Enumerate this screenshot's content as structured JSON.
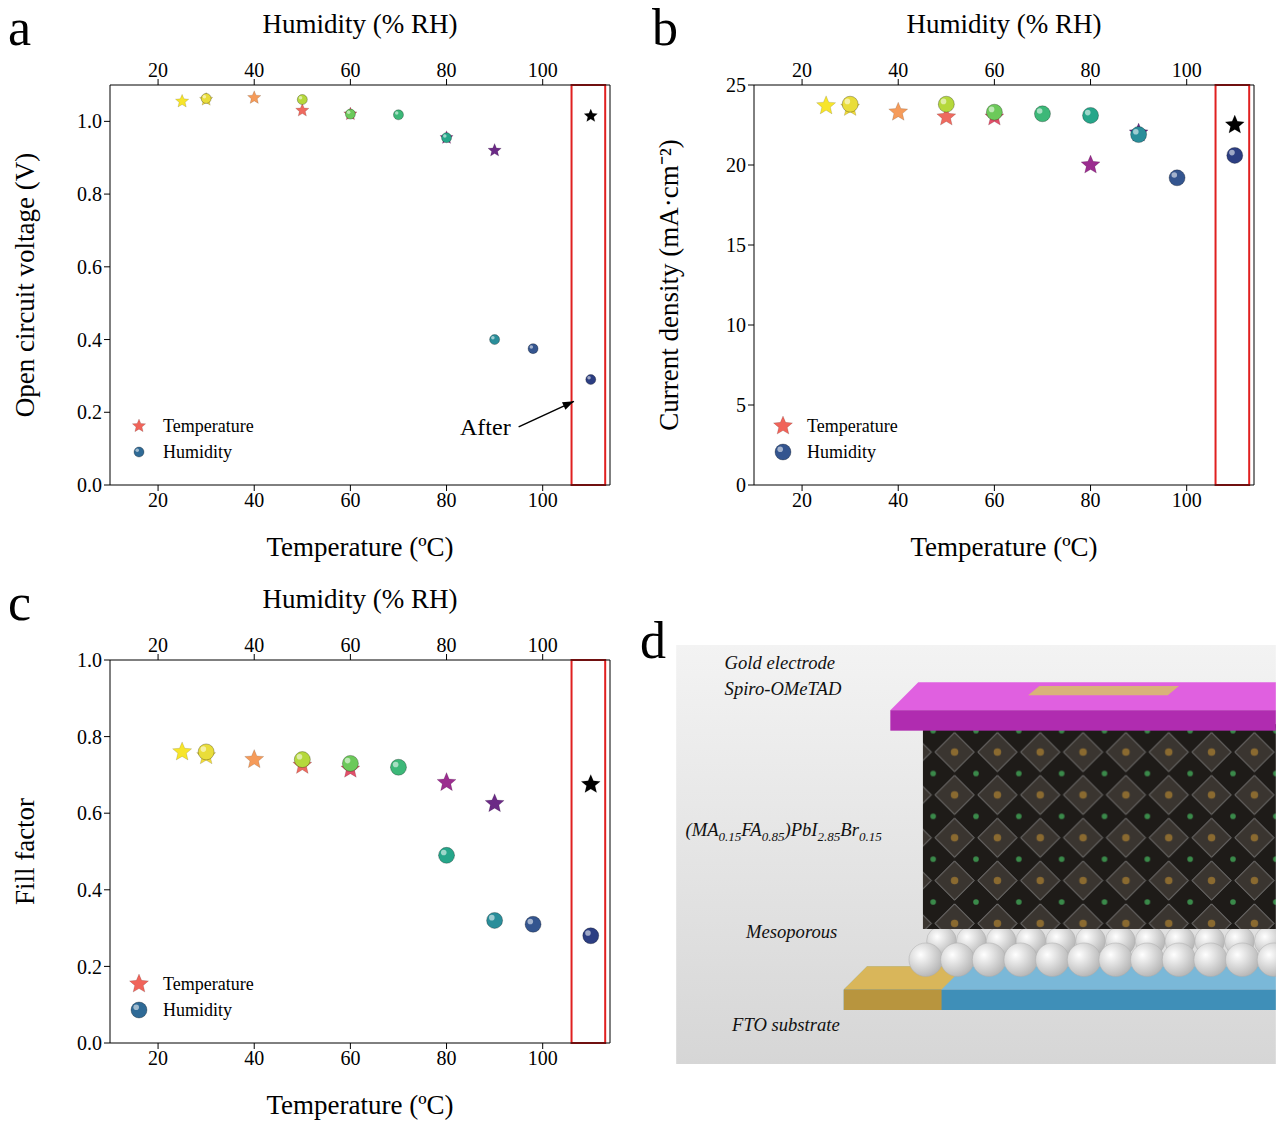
{
  "chart_data": [
    {
      "label": "a",
      "type": "scatter",
      "x_label": "Temperature (ºC)",
      "x2_label": "Humidity (% RH)",
      "y_label": "Open circuit voltage (V)",
      "xlim": [
        10,
        114
      ],
      "xticks": [
        20,
        40,
        60,
        80,
        100
      ],
      "x2lim": [
        10,
        114
      ],
      "x2ticks": [
        20,
        40,
        60,
        80,
        100
      ],
      "ylim": [
        0,
        1.1
      ],
      "yticks": [
        {
          "value": 0,
          "label": "0.0"
        },
        0.2,
        0.4,
        0.6,
        0.8,
        {
          "value": 1,
          "label": "1.0"
        }
      ],
      "legend": "lower left",
      "highlight_x": [
        106,
        113
      ],
      "annotations": [
        {
          "text": "After",
          "arrow": [
            [
              95,
              0.16
            ],
            [
              106.5,
              0.23
            ]
          ]
        }
      ],
      "series": [
        {
          "name": "Temperature",
          "marker": "star",
          "color": "#f0645a",
          "x": [
            25,
            30,
            40,
            50,
            60,
            80,
            90,
            110
          ],
          "values": [
            1.055,
            1.06,
            1.065,
            1.03,
            1.02,
            0.955,
            0.92,
            1.015
          ],
          "colors": [
            "#f7e52b",
            "#f2dc3c",
            "#f59b5a",
            "#ee6a5f",
            "#e2506a",
            "#9b2d8f",
            "#6b2a86",
            "#000000"
          ]
        },
        {
          "name": "Humidity",
          "axis": "x2",
          "marker": "circle",
          "color": "#2f6a96",
          "x": [
            30,
            50,
            60,
            70,
            80,
            90,
            98,
            110
          ],
          "values": [
            1.063,
            1.06,
            1.02,
            1.018,
            0.955,
            0.4,
            0.375,
            0.29
          ],
          "colors": [
            "#e9dd3a",
            "#b5d83c",
            "#6cc95a",
            "#3cb878",
            "#26a68a",
            "#2a8e9a",
            "#34558f",
            "#2c3e82"
          ]
        }
      ]
    },
    {
      "label": "b",
      "type": "scatter",
      "x_label": "Temperature (ºC)",
      "x2_label": "Humidity (% RH)",
      "y_label": "Current density (mA·cm⁻²)",
      "xlim": [
        10,
        114
      ],
      "xticks": [
        20,
        40,
        60,
        80,
        100
      ],
      "x2lim": [
        10,
        114
      ],
      "x2ticks": [
        20,
        40,
        60,
        80,
        100
      ],
      "ylim": [
        0,
        25
      ],
      "yticks": [
        0,
        5,
        10,
        15,
        20,
        25
      ],
      "legend": "lower left",
      "highlight_x": [
        106,
        113
      ],
      "series": [
        {
          "name": "Temperature",
          "marker": "star",
          "color": "#f0645a",
          "x": [
            25,
            30,
            40,
            50,
            60,
            80,
            90,
            110
          ],
          "values": [
            23.7,
            23.6,
            23.3,
            23.0,
            23.0,
            20.0,
            22.0,
            22.5
          ],
          "colors": [
            "#f7e52b",
            "#f2dc3c",
            "#f59b5a",
            "#ee6a5f",
            "#e2506a",
            "#9b2d8f",
            "#6b2a86",
            "#000000"
          ]
        },
        {
          "name": "Humidity",
          "axis": "x2",
          "marker": "circle",
          "color": "#34558f",
          "x": [
            30,
            50,
            60,
            70,
            80,
            90,
            98,
            110
          ],
          "values": [
            23.8,
            23.8,
            23.3,
            23.2,
            23.1,
            21.9,
            19.2,
            20.6
          ],
          "colors": [
            "#e9dd3a",
            "#b5d83c",
            "#6cc95a",
            "#3cb878",
            "#26a68a",
            "#2a8e9a",
            "#34558f",
            "#2c3e82"
          ]
        }
      ]
    },
    {
      "label": "c",
      "type": "scatter",
      "x_label": "Temperature (ºC)",
      "x2_label": "Humidity (% RH)",
      "y_label": "Fill factor",
      "xlim": [
        10,
        114
      ],
      "xticks": [
        20,
        40,
        60,
        80,
        100
      ],
      "x2lim": [
        10,
        114
      ],
      "x2ticks": [
        20,
        40,
        60,
        80,
        100
      ],
      "ylim": [
        0,
        1
      ],
      "yticks": [
        {
          "value": 0,
          "label": "0.0"
        },
        0.2,
        0.4,
        0.6,
        0.8,
        {
          "value": 1,
          "label": "1.0"
        }
      ],
      "legend": "lower left",
      "highlight_x": [
        106,
        113
      ],
      "series": [
        {
          "name": "Temperature",
          "marker": "star",
          "color": "#f0645a",
          "x": [
            25,
            30,
            40,
            50,
            60,
            80,
            90,
            110
          ],
          "values": [
            0.76,
            0.75,
            0.74,
            0.725,
            0.715,
            0.68,
            0.625,
            0.675
          ],
          "colors": [
            "#f7e52b",
            "#f2dc3c",
            "#f59b5a",
            "#ee6a5f",
            "#e2506a",
            "#9b2d8f",
            "#6b2a86",
            "#000000"
          ]
        },
        {
          "name": "Humidity",
          "axis": "x2",
          "marker": "circle",
          "color": "#2f6a96",
          "x": [
            30,
            50,
            60,
            70,
            80,
            90,
            98,
            110
          ],
          "values": [
            0.76,
            0.74,
            0.73,
            0.72,
            0.49,
            0.32,
            0.31,
            0.28
          ],
          "colors": [
            "#e9dd3a",
            "#b5d83c",
            "#6cc95a",
            "#3cb878",
            "#26a68a",
            "#2a8e9a",
            "#34558f",
            "#2c3e82"
          ]
        }
      ]
    }
  ],
  "diagram": {
    "label": "d",
    "labels": {
      "electrode": "Gold electrode",
      "htl": "Spiro-OMeTAD",
      "absorber": [
        {
          "text": "(MA"
        },
        {
          "sub": "0.15"
        },
        {
          "text": "FA"
        },
        {
          "sub": "0.85"
        },
        {
          "text": ")PbI"
        },
        {
          "sub": "2.85"
        },
        {
          "text": "Br"
        },
        {
          "sub": "0.15"
        }
      ],
      "etl": "Mesoporous",
      "substrate": "FTO substrate"
    }
  }
}
